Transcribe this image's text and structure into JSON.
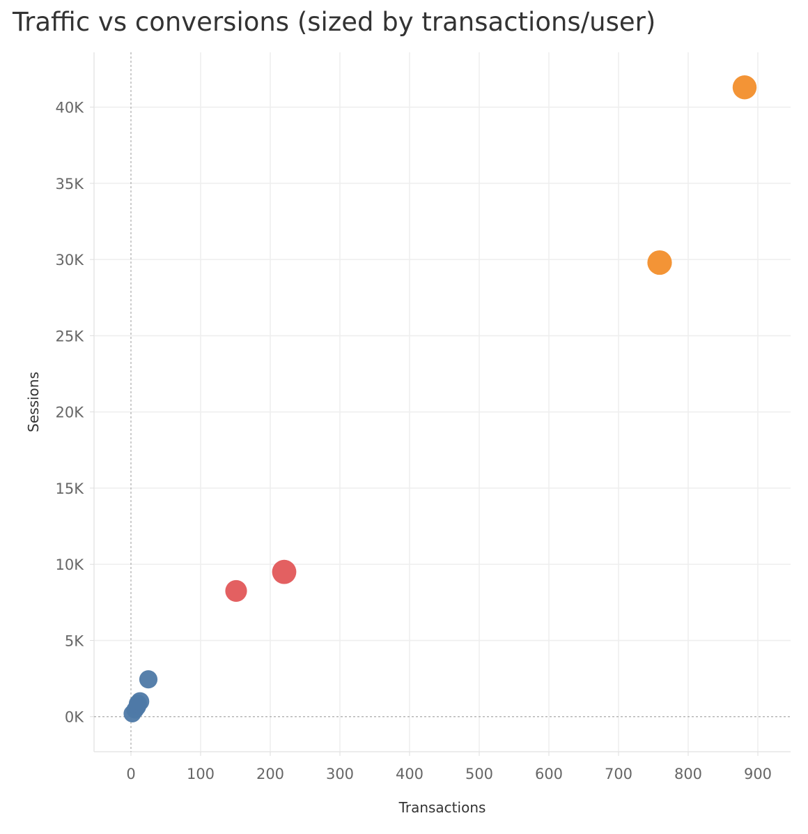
{
  "chart_data": {
    "type": "scatter",
    "title": "Traffic vs conversions (sized by transactions/user)",
    "xlabel": "Transactions",
    "ylabel": "Sessions",
    "xlim": [
      -53,
      947
    ],
    "ylim": [
      -2300,
      43600
    ],
    "x_ticks": [
      0,
      100,
      200,
      300,
      400,
      500,
      600,
      700,
      800,
      900
    ],
    "x_tick_labels": [
      "0",
      "100",
      "200",
      "300",
      "400",
      "500",
      "600",
      "700",
      "800",
      "900"
    ],
    "y_ticks": [
      0,
      5000,
      10000,
      15000,
      20000,
      25000,
      30000,
      35000,
      40000
    ],
    "y_tick_labels": [
      "0K",
      "5K",
      "10K",
      "15K",
      "20K",
      "25K",
      "30K",
      "35K",
      "40K"
    ],
    "grid": true,
    "zero_lines": true,
    "colors": {
      "blue": "#4e79a7",
      "red": "#e15759",
      "orange": "#f28e2b",
      "grid": "#eeeeee",
      "zero_line": "#aaaaaa"
    },
    "points": [
      {
        "x": 2,
        "y": 200,
        "size": 0.3,
        "color": "blue"
      },
      {
        "x": 6,
        "y": 450,
        "size": 0.3,
        "color": "blue"
      },
      {
        "x": 9,
        "y": 650,
        "size": 0.32,
        "color": "blue"
      },
      {
        "x": 10,
        "y": 850,
        "size": 0.34,
        "color": "blue"
      },
      {
        "x": 13,
        "y": 1000,
        "size": 0.36,
        "color": "blue"
      },
      {
        "x": 25,
        "y": 2450,
        "size": 0.34,
        "color": "blue"
      },
      {
        "x": 151,
        "y": 8250,
        "size": 0.55,
        "color": "red"
      },
      {
        "x": 220,
        "y": 9500,
        "size": 0.7,
        "color": "red"
      },
      {
        "x": 759,
        "y": 29800,
        "size": 0.72,
        "color": "orange"
      },
      {
        "x": 881,
        "y": 41300,
        "size": 0.68,
        "color": "orange"
      }
    ]
  }
}
